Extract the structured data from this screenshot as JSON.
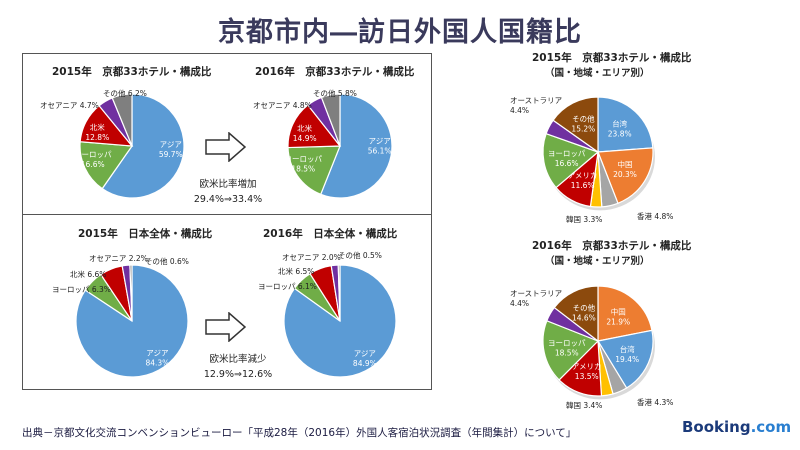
{
  "page": {
    "title": "京都市内―訪日外国人国籍比",
    "source": "出典－京都文化交流コンベンションビューロー「平成28年（2016年）外国人客宿泊状況調査（年間集計）について」",
    "logo_main": "Booking",
    "logo_suffix": ".com",
    "note1_line1": "欧米比率増加",
    "note1_line2": "29.4%⇒33.4%",
    "note2_line1": "欧米比率減少",
    "note2_line2": "12.9%⇒12.6%"
  },
  "colors": {
    "asia": "#5b9bd5",
    "europe": "#70ad47",
    "namerica": "#c00000",
    "oceania": "#7030a0",
    "other": "#7f7f7f",
    "taiwan": "#5b9bd5",
    "china": "#ed7d31",
    "hongkong": "#a5a5a5",
    "korea": "#ffc000",
    "america": "#c00000",
    "europe_r": "#70ad47",
    "australia": "#7030a0",
    "other_r": "#8c4a0d"
  },
  "chart_data": [
    {
      "type": "pie",
      "title": "2015年　京都33ホテル・構成比",
      "slices": [
        {
          "label": "アジア",
          "value": 59.7,
          "color": "#5b9bd5"
        },
        {
          "label": "ヨーロッパ",
          "value": 16.6,
          "color": "#70ad47"
        },
        {
          "label": "北米",
          "value": 12.8,
          "color": "#c00000"
        },
        {
          "label": "オセアニア",
          "value": 4.7,
          "color": "#7030a0"
        },
        {
          "label": "その他",
          "value": 6.2,
          "color": "#7f7f7f"
        }
      ]
    },
    {
      "type": "pie",
      "title": "2016年　京都33ホテル・構成比",
      "slices": [
        {
          "label": "アジア",
          "value": 56.1,
          "color": "#5b9bd5"
        },
        {
          "label": "ヨーロッパ",
          "value": 18.5,
          "color": "#70ad47"
        },
        {
          "label": "北米",
          "value": 14.9,
          "color": "#c00000"
        },
        {
          "label": "オセアニア",
          "value": 4.8,
          "color": "#7030a0"
        },
        {
          "label": "その他",
          "value": 5.8,
          "color": "#7f7f7f"
        }
      ]
    },
    {
      "type": "pie",
      "title": "2015年　日本全体・構成比",
      "slices": [
        {
          "label": "アジア",
          "value": 84.3,
          "color": "#5b9bd5"
        },
        {
          "label": "ヨーロッパ",
          "value": 6.3,
          "color": "#70ad47"
        },
        {
          "label": "北米",
          "value": 6.6,
          "color": "#c00000"
        },
        {
          "label": "オセアニア",
          "value": 2.2,
          "color": "#7030a0"
        },
        {
          "label": "その他",
          "value": 0.6,
          "color": "#7f7f7f"
        }
      ]
    },
    {
      "type": "pie",
      "title": "2016年　日本全体・構成比",
      "slices": [
        {
          "label": "アジア",
          "value": 84.9,
          "color": "#5b9bd5"
        },
        {
          "label": "ヨーロッパ",
          "value": 6.1,
          "color": "#70ad47"
        },
        {
          "label": "北米",
          "value": 6.5,
          "color": "#c00000"
        },
        {
          "label": "オセアニア",
          "value": 2.0,
          "color": "#7030a0"
        },
        {
          "label": "その他",
          "value": 0.5,
          "color": "#7f7f7f"
        }
      ]
    },
    {
      "type": "pie",
      "title": "2015年　京都33ホテル・構成比",
      "subtitle": "（国・地域・エリア別）",
      "slices": [
        {
          "label": "台湾",
          "value": 23.8,
          "color": "#5b9bd5"
        },
        {
          "label": "中国",
          "value": 20.3,
          "color": "#ed7d31"
        },
        {
          "label": "香港",
          "value": 4.8,
          "color": "#a5a5a5"
        },
        {
          "label": "韓国",
          "value": 3.3,
          "color": "#ffc000"
        },
        {
          "label": "アメリカ",
          "value": 11.6,
          "color": "#c00000"
        },
        {
          "label": "ヨーロッパ",
          "value": 16.6,
          "color": "#70ad47"
        },
        {
          "label": "オーストラリア",
          "value": 4.4,
          "color": "#7030a0"
        },
        {
          "label": "その他",
          "value": 15.2,
          "color": "#8c4a0d"
        }
      ]
    },
    {
      "type": "pie",
      "title": "2016年　京都33ホテル・構成比",
      "subtitle": "（国・地域・エリア別）",
      "slices": [
        {
          "label": "中国",
          "value": 21.9,
          "color": "#ed7d31"
        },
        {
          "label": "台湾",
          "value": 19.4,
          "color": "#5b9bd5"
        },
        {
          "label": "香港",
          "value": 4.3,
          "color": "#a5a5a5"
        },
        {
          "label": "韓国",
          "value": 3.4,
          "color": "#ffc000"
        },
        {
          "label": "アメリカ",
          "value": 13.5,
          "color": "#c00000"
        },
        {
          "label": "ヨーロッパ",
          "value": 18.5,
          "color": "#70ad47"
        },
        {
          "label": "オーストラリア",
          "value": 4.4,
          "color": "#7030a0"
        },
        {
          "label": "その他",
          "value": 14.6,
          "color": "#8c4a0d"
        }
      ]
    }
  ]
}
